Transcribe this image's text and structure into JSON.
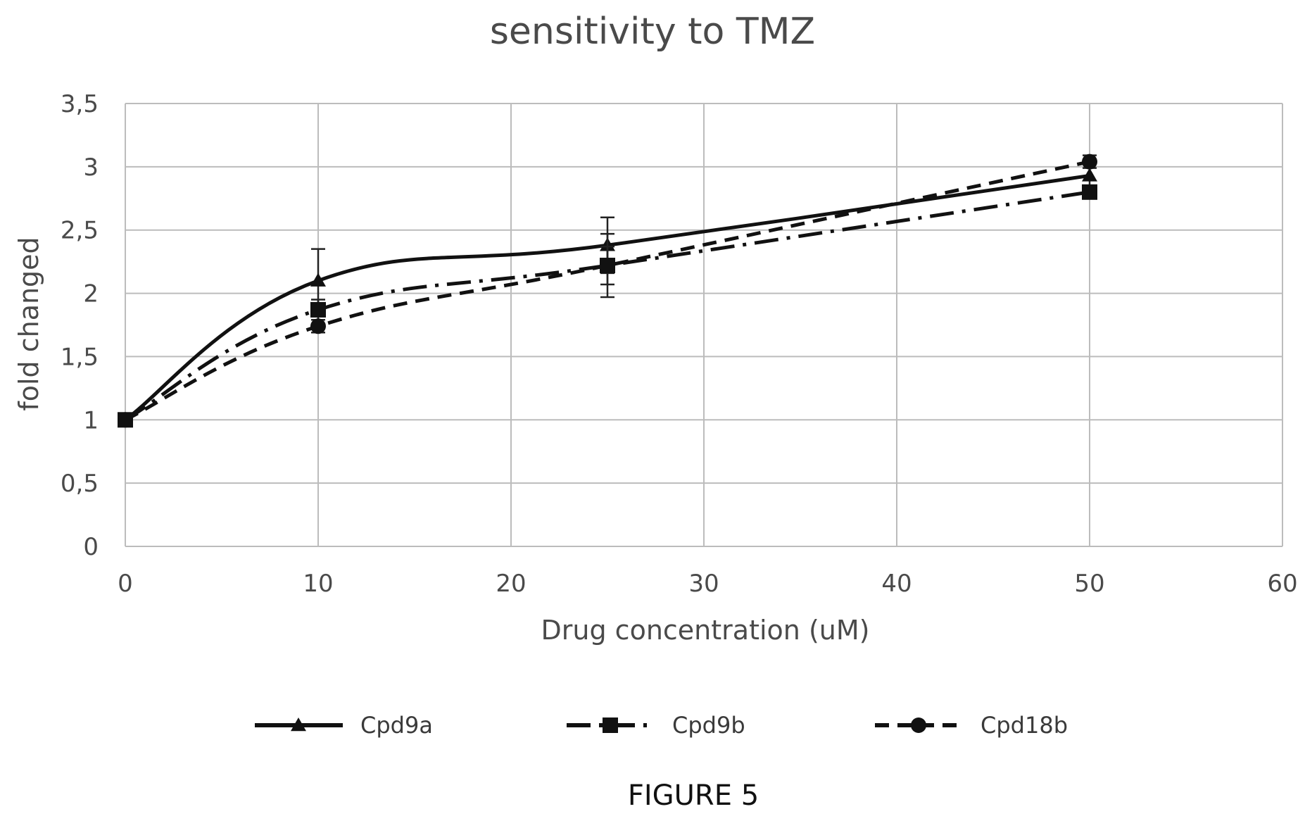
{
  "caption": "FIGURE 5",
  "chart_data": {
    "type": "line",
    "title": "sensitivity to TMZ",
    "xlabel": "Drug concentration (uM)",
    "ylabel": "fold changed",
    "xlim": [
      0,
      60
    ],
    "ylim": [
      0,
      3.5
    ],
    "x_ticks": [
      0,
      10,
      20,
      30,
      40,
      50,
      60
    ],
    "x_tick_labels": [
      "0",
      "10",
      "20",
      "30",
      "40",
      "50",
      "60"
    ],
    "y_ticks": [
      0,
      0.5,
      1,
      1.5,
      2,
      2.5,
      3,
      3.5
    ],
    "y_tick_labels": [
      "0",
      "0,5",
      "1",
      "1,5",
      "2",
      "2,5",
      "3",
      "3,5"
    ],
    "grid": true,
    "legend_position": "bottom",
    "series": [
      {
        "name": "Cpd9a",
        "marker": "triangle",
        "line_style": "solid",
        "x": [
          0,
          10,
          25,
          50
        ],
        "y": [
          1.0,
          2.1,
          2.38,
          2.93
        ],
        "error": [
          0.0,
          0.25,
          0.22,
          0.1
        ]
      },
      {
        "name": "Cpd9b",
        "marker": "square",
        "line_style": "dash-dot",
        "x": [
          0,
          10,
          25,
          50
        ],
        "y": [
          1.0,
          1.87,
          2.22,
          2.8
        ],
        "error": [
          0.0,
          0.08,
          0.15,
          0.05
        ]
      },
      {
        "name": "Cpd18b",
        "marker": "circle",
        "line_style": "dashed",
        "x": [
          0,
          10,
          25,
          50
        ],
        "y": [
          1.0,
          1.74,
          2.22,
          3.04
        ],
        "error": [
          0.0,
          0.05,
          0.25,
          0.05
        ]
      }
    ]
  }
}
